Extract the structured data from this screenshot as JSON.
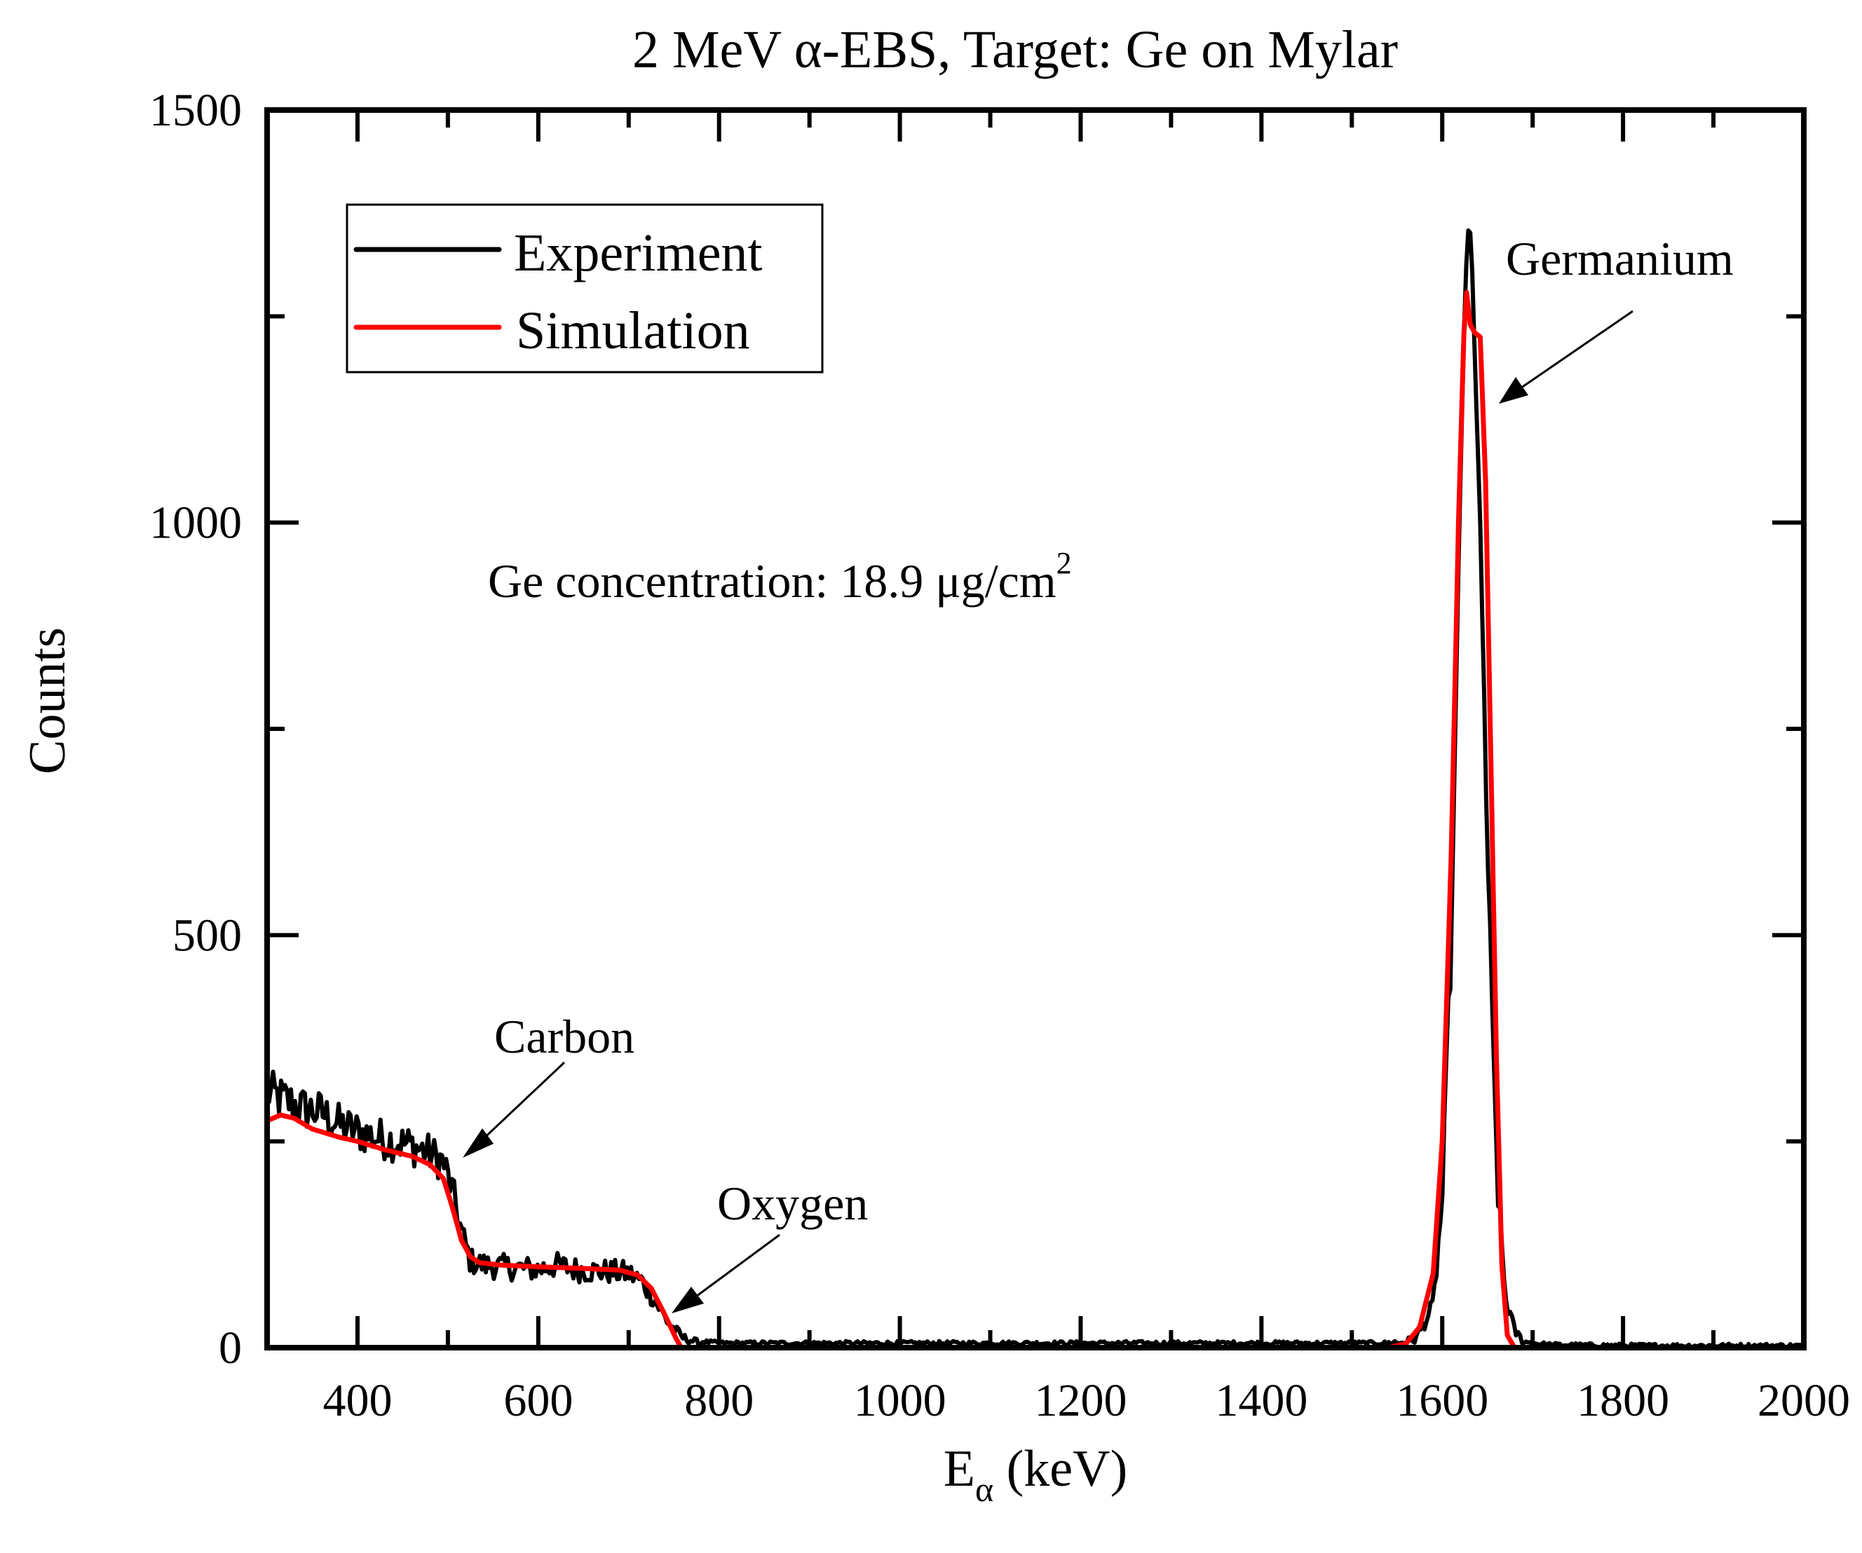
{
  "chart_data": {
    "type": "line",
    "title": "2 MeV α-EBS, Target: Ge on Mylar",
    "xlabel_main": "E",
    "xlabel_sub": "α",
    "xlabel_unit": " (keV)",
    "ylabel": "Counts",
    "xlim": [
      300,
      2000
    ],
    "ylim": [
      0,
      1500
    ],
    "grid": false,
    "x_ticks": [
      400,
      600,
      800,
      1000,
      1200,
      1400,
      1600,
      1800,
      2000
    ],
    "x_tick_labels": [
      "400",
      "600",
      "800",
      "1000",
      "1200",
      "1400",
      "1600",
      "1800",
      "2000"
    ],
    "y_ticks": [
      0,
      500,
      1000,
      1500
    ],
    "y_tick_labels": [
      "0",
      "500",
      "1000",
      "1500"
    ],
    "legend": {
      "placement": "top-left",
      "entries": [
        {
          "label": "Experiment",
          "color": "#000000"
        },
        {
          "label": "Simulation",
          "color": "#ff0000"
        }
      ]
    },
    "series": [
      {
        "name": "Experiment",
        "color": "#000000",
        "x": [
          300,
          320,
          340,
          360,
          380,
          400,
          420,
          440,
          460,
          480,
          495,
          505,
          515,
          525,
          540,
          560,
          580,
          600,
          620,
          640,
          660,
          680,
          700,
          715,
          730,
          745,
          760,
          780,
          800,
          900,
          1000,
          1100,
          1200,
          1300,
          1400,
          1500,
          1540,
          1570,
          1590,
          1600,
          1610,
          1618,
          1624,
          1628,
          1632,
          1636,
          1642,
          1648,
          1655,
          1662,
          1670,
          1680,
          1690,
          1700,
          1720,
          1800,
          2000
        ],
        "y": [
          310,
          300,
          290,
          285,
          270,
          262,
          255,
          250,
          245,
          235,
          225,
          190,
          140,
          105,
          100,
          98,
          96,
          95,
          100,
          95,
          93,
          92,
          90,
          80,
          55,
          28,
          12,
          5,
          3,
          3,
          3,
          3,
          3,
          3,
          3,
          3,
          3,
          10,
          50,
          180,
          500,
          950,
          1230,
          1355,
          1350,
          1200,
          1000,
          700,
          400,
          180,
          60,
          20,
          8,
          3,
          1,
          0,
          0
        ]
      },
      {
        "name": "Simulation",
        "color": "#ff0000",
        "x": [
          300,
          315,
          330,
          350,
          380,
          400,
          430,
          460,
          480,
          495,
          505,
          515,
          525,
          535,
          560,
          600,
          650,
          690,
          710,
          725,
          740,
          752,
          758,
          1500,
          1540,
          1560,
          1575,
          1590,
          1600,
          1610,
          1618,
          1624,
          1627,
          1631,
          1636,
          1642,
          1648,
          1654,
          1660,
          1666,
          1672,
          1680,
          2000
        ],
        "y": [
          275,
          282,
          278,
          265,
          255,
          250,
          240,
          232,
          222,
          205,
          170,
          130,
          110,
          103,
          100,
          98,
          96,
          94,
          88,
          72,
          40,
          12,
          0,
          0,
          0,
          5,
          25,
          90,
          250,
          600,
          1000,
          1230,
          1279,
          1240,
          1230,
          1225,
          1050,
          700,
          350,
          100,
          15,
          0,
          0
        ]
      }
    ],
    "annotations": [
      {
        "text": "Germanium",
        "target_x": 1640,
        "target_y": 1150
      },
      {
        "text": "Carbon",
        "target_x": 510,
        "target_y": 230
      },
      {
        "text": "Oxygen",
        "target_x": 752,
        "target_y": 45
      }
    ],
    "note": {
      "prefix": "Ge concentration: 18.9 μg/cm",
      "superscript": "2"
    }
  }
}
